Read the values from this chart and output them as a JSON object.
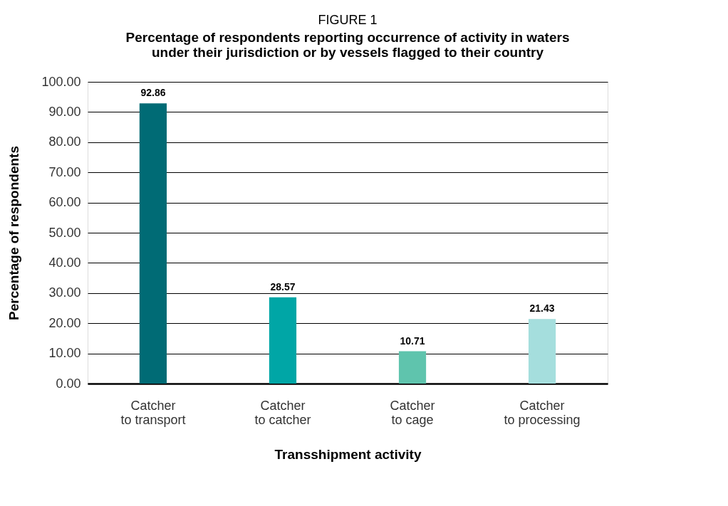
{
  "chart_data": {
    "type": "bar",
    "title": "FIGURE 1",
    "subtitle": "Percentage of respondents reporting occurrence of activity in waters under their jurisdiction or by vessels flagged to their country",
    "xlabel": "Transshipment activity",
    "ylabel": "Percentage of respondents",
    "categories": [
      "Catcher to transport",
      "Catcher to catcher",
      "Catcher to cage",
      "Catcher to processing"
    ],
    "values": [
      92.86,
      28.57,
      10.71,
      21.43
    ],
    "colors": [
      "#006b75",
      "#00a6a6",
      "#5fc4ad",
      "#a5dedd"
    ],
    "value_labels": [
      "92.86",
      "28.57",
      "10.71",
      "21.43"
    ],
    "ylim": [
      0,
      100
    ],
    "yticks": [
      {
        "value": 0,
        "label": "0.00"
      },
      {
        "value": 10,
        "label": "10.00"
      },
      {
        "value": 20,
        "label": "20.00"
      },
      {
        "value": 30,
        "label": "30.00"
      },
      {
        "value": 40,
        "label": "40.00"
      },
      {
        "value": 50,
        "label": "50.00"
      },
      {
        "value": 60,
        "label": "60.00"
      },
      {
        "value": 70,
        "label": "70.00"
      },
      {
        "value": 80,
        "label": "80.00"
      },
      {
        "value": 90,
        "label": "90.00"
      },
      {
        "value": 100,
        "label": "100.00"
      }
    ],
    "grid": "y"
  }
}
